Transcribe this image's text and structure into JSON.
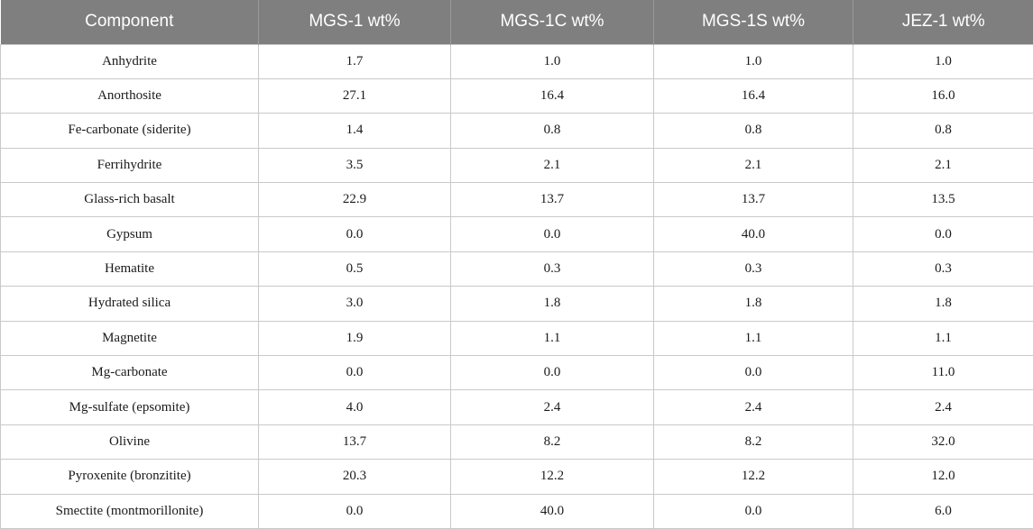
{
  "table": {
    "headers": [
      "Component",
      "MGS-1 wt%",
      "MGS-1C wt%",
      "MGS-1S wt%",
      "JEZ-1 wt%"
    ],
    "rows": [
      [
        "Anhydrite",
        "1.7",
        "1.0",
        "1.0",
        "1.0"
      ],
      [
        "Anorthosite",
        "27.1",
        "16.4",
        "16.4",
        "16.0"
      ],
      [
        "Fe-carbonate (siderite)",
        "1.4",
        "0.8",
        "0.8",
        "0.8"
      ],
      [
        "Ferrihydrite",
        "3.5",
        "2.1",
        "2.1",
        "2.1"
      ],
      [
        "Glass-rich basalt",
        "22.9",
        "13.7",
        "13.7",
        "13.5"
      ],
      [
        "Gypsum",
        "0.0",
        "0.0",
        "40.0",
        "0.0"
      ],
      [
        "Hematite",
        "0.5",
        "0.3",
        "0.3",
        "0.3"
      ],
      [
        "Hydrated silica",
        "3.0",
        "1.8",
        "1.8",
        "1.8"
      ],
      [
        "Magnetite",
        "1.9",
        "1.1",
        "1.1",
        "1.1"
      ],
      [
        "Mg-carbonate",
        "0.0",
        "0.0",
        "0.0",
        "11.0"
      ],
      [
        "Mg-sulfate (epsomite)",
        "4.0",
        "2.4",
        "2.4",
        "2.4"
      ],
      [
        "Olivine",
        "13.7",
        "8.2",
        "8.2",
        "32.0"
      ],
      [
        "Pyroxenite (bronzitite)",
        "20.3",
        "12.2",
        "12.2",
        "12.0"
      ],
      [
        "Smectite (montmorillonite)",
        "0.0",
        "40.0",
        "0.0",
        "6.0"
      ]
    ]
  },
  "colors": {
    "header_bg": "#7f7f7f",
    "header_text": "#ffffff",
    "grid": "#c9c9c9"
  }
}
